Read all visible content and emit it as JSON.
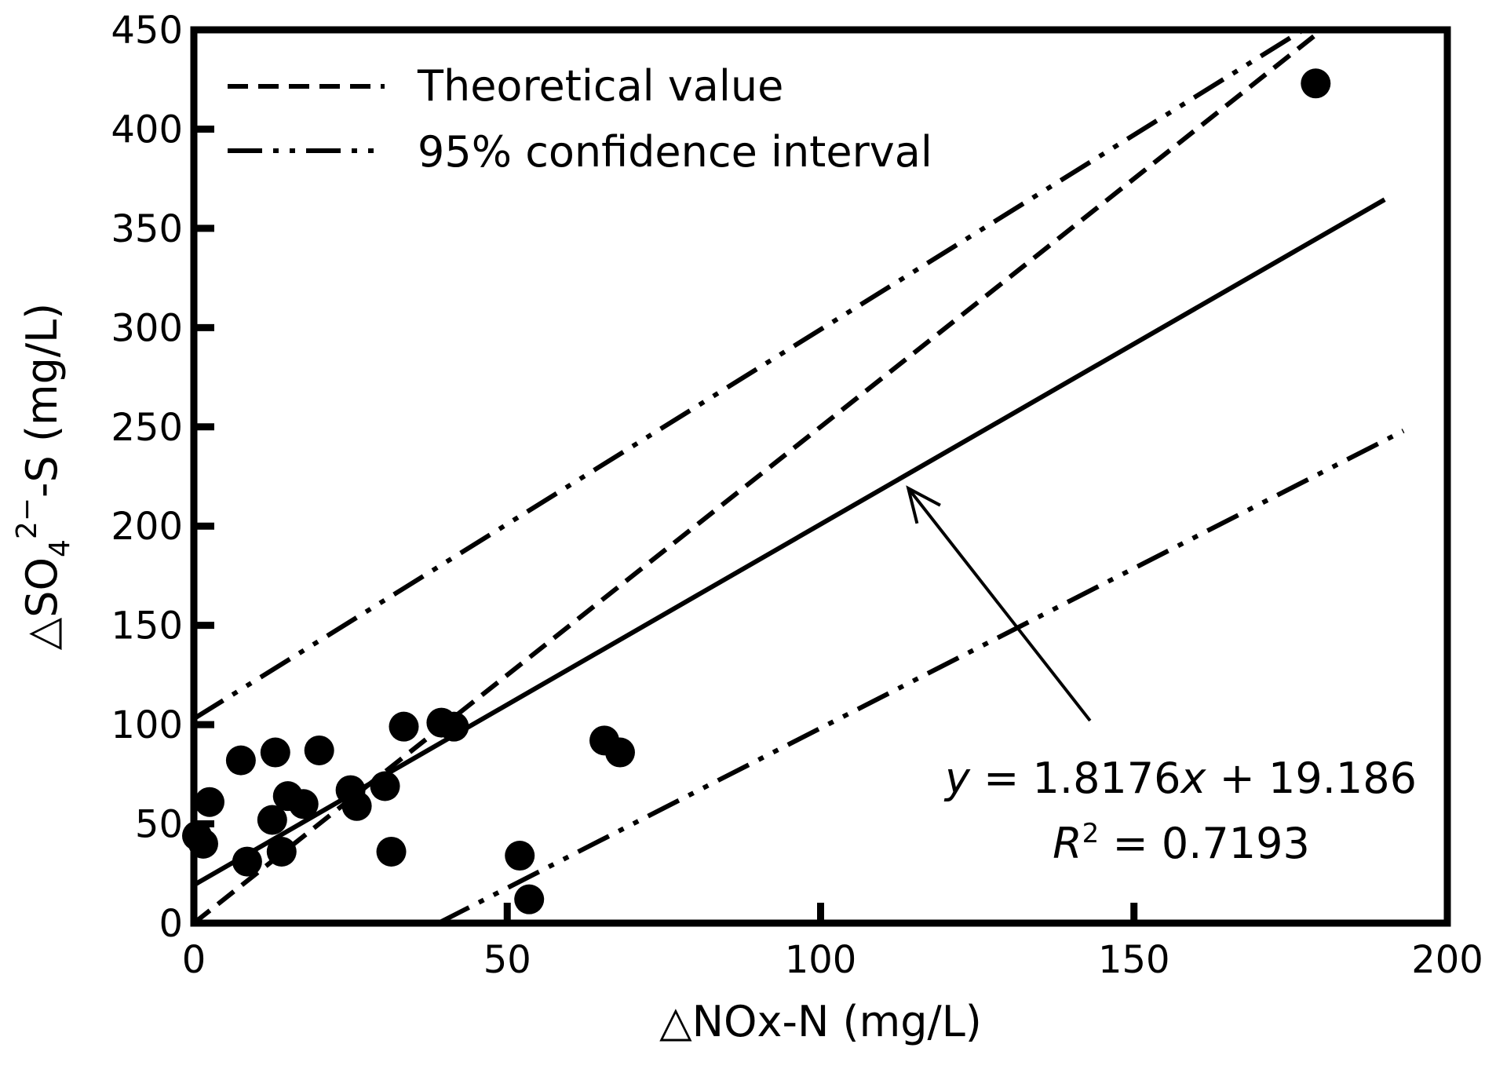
{
  "chart_data": {
    "type": "scatter",
    "xlabel_prefix": "△NOx-N (mg/L)",
    "ylabel_parts": {
      "lead": "△SO",
      "sub": "4",
      "sup": "2−",
      "tail": "-S (mg/L)"
    },
    "xlim": [
      0,
      200
    ],
    "ylim": [
      0,
      450
    ],
    "xticks": [
      0,
      50,
      100,
      150,
      200
    ],
    "yticks": [
      0,
      50,
      100,
      150,
      200,
      250,
      300,
      350,
      400,
      450
    ],
    "grid": false,
    "legend": {
      "placement": "top-left",
      "entries": [
        {
          "label": "Theoretical value",
          "style": "dashed"
        },
        {
          "label": "95% confidence interval",
          "style": "dash-dot-dot"
        }
      ]
    },
    "points": [
      {
        "x": 0.5,
        "y": 44
      },
      {
        "x": 1.5,
        "y": 40
      },
      {
        "x": 2.5,
        "y": 61
      },
      {
        "x": 7.5,
        "y": 82
      },
      {
        "x": 8.5,
        "y": 31
      },
      {
        "x": 12.5,
        "y": 52
      },
      {
        "x": 13,
        "y": 86
      },
      {
        "x": 14,
        "y": 36
      },
      {
        "x": 15,
        "y": 64
      },
      {
        "x": 17.5,
        "y": 60
      },
      {
        "x": 20,
        "y": 87
      },
      {
        "x": 25,
        "y": 67
      },
      {
        "x": 26,
        "y": 59
      },
      {
        "x": 30.5,
        "y": 69
      },
      {
        "x": 31.5,
        "y": 36
      },
      {
        "x": 33.5,
        "y": 99
      },
      {
        "x": 39.5,
        "y": 101
      },
      {
        "x": 41.5,
        "y": 99
      },
      {
        "x": 52,
        "y": 34
      },
      {
        "x": 53.5,
        "y": 12
      },
      {
        "x": 65.5,
        "y": 92
      },
      {
        "x": 68,
        "y": 86
      },
      {
        "x": 179,
        "y": 423
      }
    ],
    "lines": [
      {
        "name": "Theoretical value",
        "style": "dashed",
        "from": [
          0,
          0
        ],
        "to": [
          180,
          450
        ]
      },
      {
        "name": "95% confidence interval",
        "style": "dash-dot-dot",
        "from": [
          0,
          103
        ],
        "to": [
          177,
          450
        ]
      },
      {
        "name": "95% confidence interval",
        "style": "dash-dot-dot",
        "from": [
          39,
          0
        ],
        "to": [
          193,
          248
        ]
      },
      {
        "name": "fit",
        "style": "solid",
        "from": [
          0,
          19.186
        ],
        "to": [
          190,
          364.5
        ]
      }
    ],
    "annotation": {
      "equation": {
        "y_var": "y",
        "mid": " = 1.8176",
        "x_var": "x",
        "end": " + 19.186"
      },
      "r2": {
        "r": "R",
        "sup": "2",
        "end": " = 0.7193"
      },
      "arrow_from": [
        143,
        102
      ],
      "arrow_to": [
        114,
        219
      ]
    }
  }
}
